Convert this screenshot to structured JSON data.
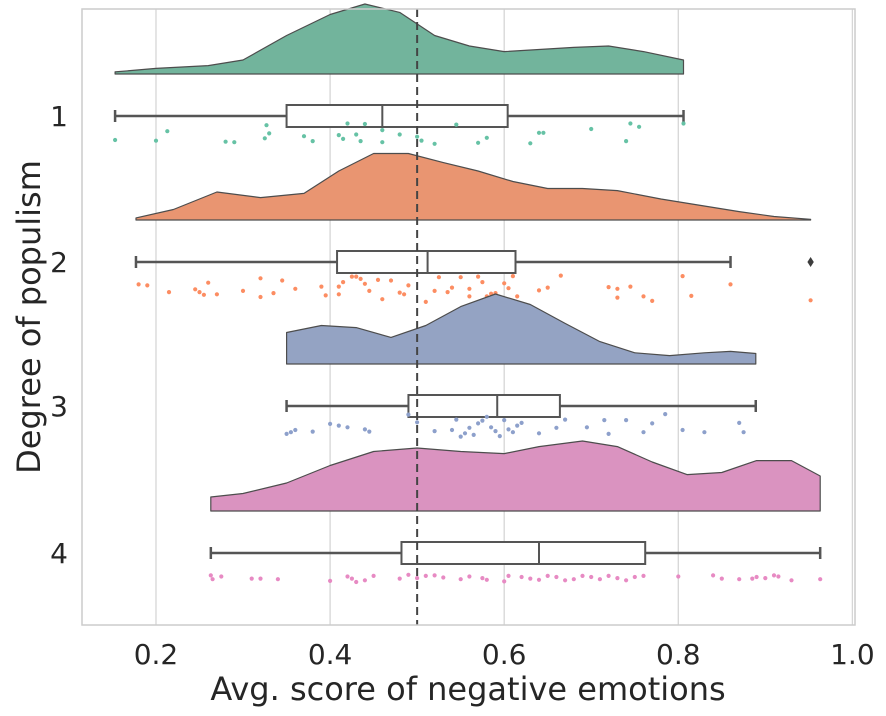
{
  "chart_data": {
    "type": "raincloud",
    "xlabel": "Avg. score of negative emotions",
    "ylabel": "Degree of populism",
    "xlim": [
      0.115,
      1.003
    ],
    "xticks": [
      0.2,
      0.4,
      0.6,
      0.8,
      1.0
    ],
    "xtick_labels": [
      "0.2",
      "0.4",
      "0.6",
      "0.8",
      "1.0"
    ],
    "reference_line": 0.5,
    "grid": "vertical",
    "groups": [
      {
        "label": "1",
        "color": "#72b49c",
        "dot_color": "#66c2a5",
        "box": {
          "whisker_low": 0.153,
          "q1": 0.35,
          "median": 0.46,
          "q3": 0.604,
          "whisker_high": 0.806
        },
        "outliers": [],
        "density": [
          [
            0.153,
            0.03
          ],
          [
            0.2,
            0.08
          ],
          [
            0.26,
            0.12
          ],
          [
            0.3,
            0.2
          ],
          [
            0.35,
            0.55
          ],
          [
            0.4,
            0.85
          ],
          [
            0.44,
            1.0
          ],
          [
            0.48,
            0.88
          ],
          [
            0.52,
            0.55
          ],
          [
            0.56,
            0.4
          ],
          [
            0.6,
            0.32
          ],
          [
            0.64,
            0.35
          ],
          [
            0.68,
            0.38
          ],
          [
            0.72,
            0.4
          ],
          [
            0.76,
            0.32
          ],
          [
            0.806,
            0.2
          ]
        ],
        "points": [
          [
            0.153,
            0.0
          ],
          [
            0.2,
            -0.06
          ],
          [
            0.213,
            0.8
          ],
          [
            0.28,
            -0.15
          ],
          [
            0.29,
            -0.2
          ],
          [
            0.325,
            0.15
          ],
          [
            0.327,
            1.35
          ],
          [
            0.33,
            0.6
          ],
          [
            0.37,
            0.35
          ],
          [
            0.38,
            -0.1
          ],
          [
            0.41,
            0.45
          ],
          [
            0.415,
            0.1
          ],
          [
            0.42,
            1.5
          ],
          [
            0.43,
            0.5
          ],
          [
            0.435,
            -0.1
          ],
          [
            0.44,
            1.45
          ],
          [
            0.46,
            0.9
          ],
          [
            0.46,
            -0.2
          ],
          [
            0.48,
            0.5
          ],
          [
            0.5,
            0.3
          ],
          [
            0.505,
            -0.05
          ],
          [
            0.52,
            -0.35
          ],
          [
            0.545,
            1.4
          ],
          [
            0.57,
            -0.25
          ],
          [
            0.58,
            0.2
          ],
          [
            0.63,
            -0.3
          ],
          [
            0.64,
            0.65
          ],
          [
            0.645,
            0.65
          ],
          [
            0.7,
            1.0
          ],
          [
            0.74,
            -0.1
          ],
          [
            0.745,
            1.5
          ],
          [
            0.755,
            1.2
          ],
          [
            0.806,
            1.5
          ]
        ]
      },
      {
        "label": "2",
        "color": "#e99571",
        "dot_color": "#fc8d62",
        "box": {
          "whisker_low": 0.177,
          "q1": 0.408,
          "median": 0.512,
          "q3": 0.613,
          "whisker_high": 0.86
        },
        "outliers": [
          0.952
        ],
        "density": [
          [
            0.177,
            0.03
          ],
          [
            0.22,
            0.15
          ],
          [
            0.27,
            0.4
          ],
          [
            0.32,
            0.32
          ],
          [
            0.37,
            0.38
          ],
          [
            0.41,
            0.7
          ],
          [
            0.45,
            0.95
          ],
          [
            0.49,
            0.95
          ],
          [
            0.53,
            0.82
          ],
          [
            0.57,
            0.7
          ],
          [
            0.61,
            0.55
          ],
          [
            0.65,
            0.45
          ],
          [
            0.69,
            0.45
          ],
          [
            0.73,
            0.42
          ],
          [
            0.78,
            0.3
          ],
          [
            0.82,
            0.22
          ],
          [
            0.87,
            0.12
          ],
          [
            0.91,
            0.05
          ],
          [
            0.952,
            0.01
          ]
        ],
        "points": [
          [
            0.18,
            0.15
          ],
          [
            0.19,
            0.05
          ],
          [
            0.215,
            -0.55
          ],
          [
            0.245,
            -0.3
          ],
          [
            0.25,
            -0.55
          ],
          [
            0.255,
            -0.8
          ],
          [
            0.26,
            0.3
          ],
          [
            0.27,
            -0.75
          ],
          [
            0.3,
            -0.45
          ],
          [
            0.32,
            0.7
          ],
          [
            0.32,
            -1.0
          ],
          [
            0.335,
            -0.65
          ],
          [
            0.345,
            0.5
          ],
          [
            0.36,
            -0.25
          ],
          [
            0.39,
            -0.05
          ],
          [
            0.395,
            -0.85
          ],
          [
            0.41,
            -0.75
          ],
          [
            0.41,
            -0.05
          ],
          [
            0.415,
            0.35
          ],
          [
            0.425,
            0.85
          ],
          [
            0.43,
            0.85
          ],
          [
            0.435,
            0.65
          ],
          [
            0.44,
            0.2
          ],
          [
            0.445,
            -0.45
          ],
          [
            0.455,
            0.55
          ],
          [
            0.46,
            -1.2
          ],
          [
            0.47,
            0.5
          ],
          [
            0.48,
            -0.6
          ],
          [
            0.485,
            -0.75
          ],
          [
            0.49,
            0.05
          ],
          [
            0.51,
            -1.45
          ],
          [
            0.52,
            -0.45
          ],
          [
            0.525,
            0.8
          ],
          [
            0.535,
            -0.55
          ],
          [
            0.54,
            -0.15
          ],
          [
            0.55,
            0.8
          ],
          [
            0.56,
            -0.25
          ],
          [
            0.56,
            -0.95
          ],
          [
            0.57,
            0.85
          ],
          [
            0.575,
            0.35
          ],
          [
            0.58,
            -0.95
          ],
          [
            0.585,
            -0.7
          ],
          [
            0.59,
            -0.65
          ],
          [
            0.6,
            0.25
          ],
          [
            0.605,
            -0.2
          ],
          [
            0.61,
            0.9
          ],
          [
            0.615,
            -0.95
          ],
          [
            0.64,
            -0.4
          ],
          [
            0.65,
            -0.15
          ],
          [
            0.665,
            0.95
          ],
          [
            0.72,
            -0.1
          ],
          [
            0.73,
            -0.25
          ],
          [
            0.73,
            -1.05
          ],
          [
            0.745,
            -0.05
          ],
          [
            0.76,
            -0.95
          ],
          [
            0.77,
            -1.35
          ],
          [
            0.805,
            0.9
          ],
          [
            0.815,
            -0.9
          ],
          [
            0.86,
            0.15
          ],
          [
            0.952,
            -1.3
          ]
        ]
      },
      {
        "label": "3",
        "color": "#94a3c3",
        "dot_color": "#8da0cb",
        "box": {
          "whisker_low": 0.35,
          "q1": 0.49,
          "median": 0.592,
          "q3": 0.664,
          "whisker_high": 0.889
        },
        "outliers": [],
        "density": [
          [
            0.35,
            0.45
          ],
          [
            0.39,
            0.55
          ],
          [
            0.43,
            0.52
          ],
          [
            0.47,
            0.38
          ],
          [
            0.51,
            0.55
          ],
          [
            0.55,
            0.82
          ],
          [
            0.59,
            1.0
          ],
          [
            0.63,
            0.85
          ],
          [
            0.67,
            0.58
          ],
          [
            0.71,
            0.32
          ],
          [
            0.75,
            0.16
          ],
          [
            0.79,
            0.12
          ],
          [
            0.83,
            0.16
          ],
          [
            0.86,
            0.18
          ],
          [
            0.889,
            0.15
          ]
        ],
        "points": [
          [
            0.35,
            -0.35
          ],
          [
            0.355,
            -0.2
          ],
          [
            0.36,
            0.0
          ],
          [
            0.38,
            -0.15
          ],
          [
            0.4,
            0.55
          ],
          [
            0.41,
            0.4
          ],
          [
            0.42,
            0.25
          ],
          [
            0.44,
            0.05
          ],
          [
            0.445,
            -0.15
          ],
          [
            0.49,
            1.4
          ],
          [
            0.5,
            0.7
          ],
          [
            0.52,
            -0.1
          ],
          [
            0.54,
            0.0
          ],
          [
            0.545,
            0.95
          ],
          [
            0.55,
            -0.6
          ],
          [
            0.555,
            -0.3
          ],
          [
            0.56,
            0.2
          ],
          [
            0.565,
            -0.45
          ],
          [
            0.57,
            0.6
          ],
          [
            0.575,
            0.85
          ],
          [
            0.58,
            1.2
          ],
          [
            0.585,
            0.25
          ],
          [
            0.59,
            -0.1
          ],
          [
            0.595,
            -0.55
          ],
          [
            0.6,
            0.9
          ],
          [
            0.605,
            0.05
          ],
          [
            0.61,
            -0.2
          ],
          [
            0.615,
            0.4
          ],
          [
            0.62,
            0.65
          ],
          [
            0.64,
            -0.3
          ],
          [
            0.66,
            0.2
          ],
          [
            0.67,
            0.95
          ],
          [
            0.695,
            0.25
          ],
          [
            0.715,
            0.9
          ],
          [
            0.72,
            -0.35
          ],
          [
            0.74,
            0.9
          ],
          [
            0.76,
            -0.2
          ],
          [
            0.77,
            0.6
          ],
          [
            0.785,
            1.45
          ],
          [
            0.805,
            0.0
          ],
          [
            0.83,
            -0.2
          ],
          [
            0.87,
            0.65
          ],
          [
            0.875,
            -0.2
          ]
        ]
      },
      {
        "label": "4",
        "color": "#da93c0",
        "dot_color": "#e78ac3",
        "box": {
          "whisker_low": 0.263,
          "q1": 0.482,
          "median": 0.64,
          "q3": 0.762,
          "whisker_high": 0.963
        },
        "outliers": [],
        "density": [
          [
            0.263,
            0.2
          ],
          [
            0.3,
            0.25
          ],
          [
            0.35,
            0.4
          ],
          [
            0.4,
            0.65
          ],
          [
            0.45,
            0.85
          ],
          [
            0.5,
            0.9
          ],
          [
            0.55,
            0.85
          ],
          [
            0.6,
            0.82
          ],
          [
            0.64,
            0.92
          ],
          [
            0.69,
            1.0
          ],
          [
            0.73,
            0.92
          ],
          [
            0.77,
            0.7
          ],
          [
            0.81,
            0.52
          ],
          [
            0.85,
            0.55
          ],
          [
            0.89,
            0.72
          ],
          [
            0.93,
            0.72
          ],
          [
            0.963,
            0.5
          ]
        ],
        "points": [
          [
            0.263,
            0.15
          ],
          [
            0.265,
            -0.2
          ],
          [
            0.275,
            0.05
          ],
          [
            0.31,
            -0.15
          ],
          [
            0.32,
            -0.15
          ],
          [
            0.34,
            -0.2
          ],
          [
            0.4,
            -0.35
          ],
          [
            0.42,
            0.05
          ],
          [
            0.425,
            -0.15
          ],
          [
            0.43,
            -0.45
          ],
          [
            0.44,
            -0.3
          ],
          [
            0.45,
            0.1
          ],
          [
            0.48,
            -0.15
          ],
          [
            0.49,
            0.2
          ],
          [
            0.5,
            -0.1
          ],
          [
            0.51,
            0.1
          ],
          [
            0.52,
            0.15
          ],
          [
            0.53,
            -0.05
          ],
          [
            0.55,
            -0.2
          ],
          [
            0.56,
            0.05
          ],
          [
            0.575,
            -0.1
          ],
          [
            0.58,
            -0.25
          ],
          [
            0.6,
            -0.4
          ],
          [
            0.605,
            0.1
          ],
          [
            0.62,
            0.0
          ],
          [
            0.63,
            -0.15
          ],
          [
            0.64,
            -0.25
          ],
          [
            0.65,
            0.1
          ],
          [
            0.66,
            0.0
          ],
          [
            0.67,
            -0.3
          ],
          [
            0.68,
            -0.2
          ],
          [
            0.69,
            0.1
          ],
          [
            0.7,
            0.0
          ],
          [
            0.71,
            -0.2
          ],
          [
            0.72,
            0.1
          ],
          [
            0.73,
            -0.1
          ],
          [
            0.74,
            -0.3
          ],
          [
            0.75,
            0.0
          ],
          [
            0.76,
            0.1
          ],
          [
            0.8,
            0.05
          ],
          [
            0.84,
            0.15
          ],
          [
            0.85,
            -0.15
          ],
          [
            0.87,
            -0.2
          ],
          [
            0.885,
            -0.15
          ],
          [
            0.89,
            0.0
          ],
          [
            0.9,
            -0.1
          ],
          [
            0.91,
            0.15
          ],
          [
            0.915,
            0.05
          ],
          [
            0.93,
            -0.3
          ],
          [
            0.963,
            -0.2
          ]
        ]
      }
    ]
  }
}
